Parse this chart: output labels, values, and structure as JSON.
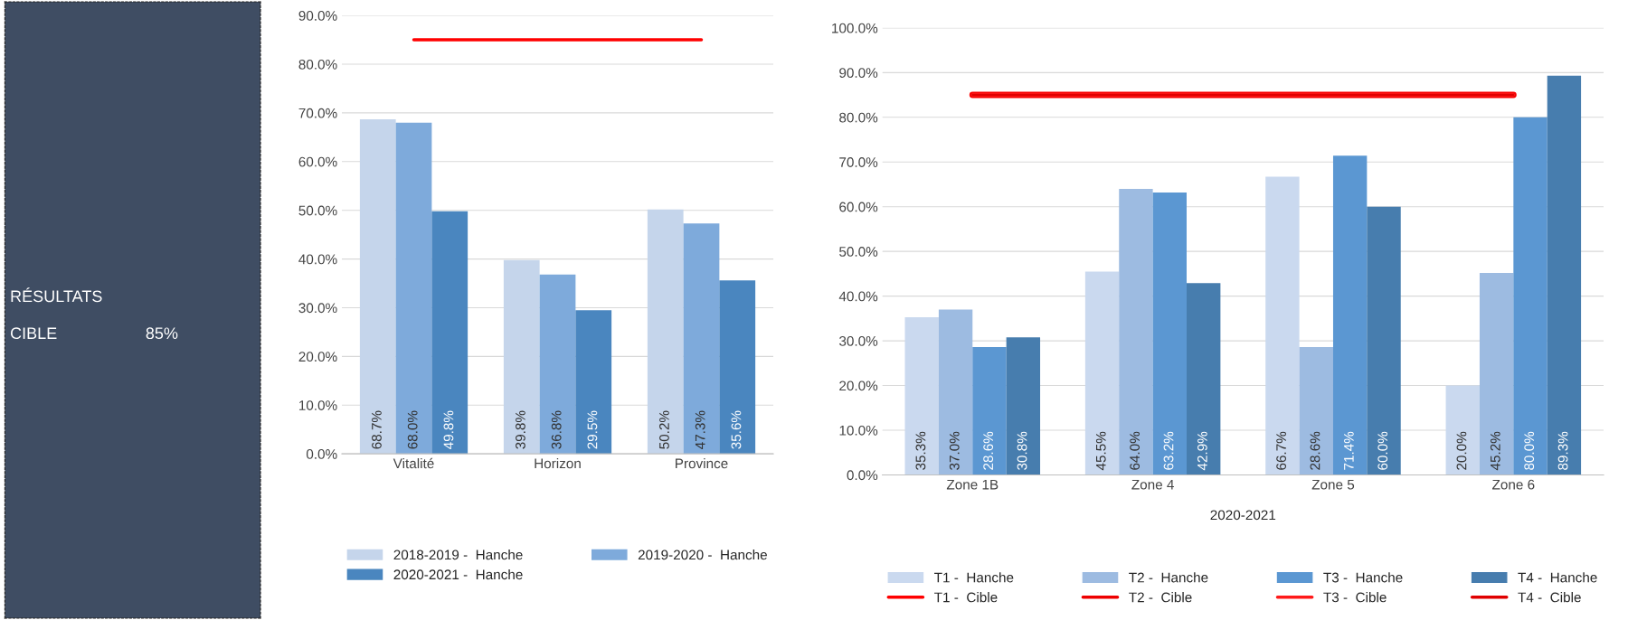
{
  "chart_data": [
    {
      "type": "other",
      "color": "#3f4d63",
      "annotations": [
        "RÉSULTATS",
        "CIBLE",
        "85%"
      ]
    },
    {
      "type": "bar",
      "categories": [
        "Vitalité",
        "Horizon",
        "Province"
      ],
      "ylim": [
        0,
        90
      ],
      "yticks": [
        {
          "value": 0,
          "label": "0.0%"
        },
        {
          "value": 10,
          "label": "10.0%"
        },
        {
          "value": 20,
          "label": "20.0%"
        },
        {
          "value": 30,
          "label": "30.0%"
        },
        {
          "value": 40,
          "label": "40.0%"
        },
        {
          "value": 50,
          "label": "50.0%"
        },
        {
          "value": 60,
          "label": "60.0%"
        },
        {
          "value": 70,
          "label": "70.0%"
        },
        {
          "value": 80,
          "label": "80.0%"
        },
        {
          "value": 90,
          "label": "90.0%"
        }
      ],
      "grid": "y",
      "legend": "bottom",
      "series": [
        {
          "name": "2018-2019 -  Hanche",
          "color": "#c5d5eb",
          "values": [
            68.7,
            39.8,
            50.2
          ],
          "value_labels": [
            "68.7%",
            "39.8%",
            "50.2%"
          ]
        },
        {
          "name": "2019-2020 -  Hanche",
          "color": "#7eaadb",
          "values": [
            68.0,
            36.8,
            47.3
          ],
          "value_labels": [
            "68.0%",
            "36.8%",
            "47.3%"
          ]
        },
        {
          "name": "2020-2021 -  Hanche",
          "color": "#4a86bf",
          "values": [
            49.8,
            29.5,
            35.6
          ],
          "value_labels": [
            "49.8%",
            "29.5%",
            "35.6%"
          ]
        },
        {
          "type": "line",
          "color": "#ff0000",
          "values": [
            85,
            85,
            85
          ]
        }
      ]
    },
    {
      "type": "bar",
      "categories": [
        "Zone 1B",
        "Zone 4",
        "Zone 5",
        "Zone 6"
      ],
      "xlabel": "2020-2021",
      "ylim": [
        0,
        100
      ],
      "yticks": [
        {
          "value": 0,
          "label": "0.0%"
        },
        {
          "value": 10,
          "label": "10.0%"
        },
        {
          "value": 20,
          "label": "20.0%"
        },
        {
          "value": 30,
          "label": "30.0%"
        },
        {
          "value": 40,
          "label": "40.0%"
        },
        {
          "value": 50,
          "label": "50.0%"
        },
        {
          "value": 60,
          "label": "60.0%"
        },
        {
          "value": 70,
          "label": "70.0%"
        },
        {
          "value": 80,
          "label": "80.0%"
        },
        {
          "value": 90,
          "label": "90.0%"
        },
        {
          "value": 100,
          "label": "100.0%"
        }
      ],
      "grid": "y",
      "legend": "bottom",
      "series": [
        {
          "name": "T1 -  Hanche",
          "color": "#cad9ef",
          "values": [
            35.3,
            45.5,
            66.7,
            20.0
          ],
          "value_labels": [
            "35.3%",
            "45.5%",
            "66.7%",
            "20.0%"
          ]
        },
        {
          "name": "T2 -  Hanche",
          "color": "#9dbbe1",
          "values": [
            37.0,
            64.0,
            28.6,
            45.2
          ],
          "value_labels": [
            "37.0%",
            "64.0%",
            "28.6%",
            "45.2%"
          ]
        },
        {
          "name": "T3 -  Hanche",
          "color": "#5b97d2",
          "values": [
            28.6,
            63.2,
            71.4,
            80.0
          ],
          "value_labels": [
            "28.6%",
            "63.2%",
            "71.4%",
            "80.0%"
          ]
        },
        {
          "name": "T4 -  Hanche",
          "color": "#477dae",
          "values": [
            30.8,
            42.9,
            60.0,
            89.3
          ],
          "value_labels": [
            "30.8%",
            "42.9%",
            "60.0%",
            "89.3%"
          ]
        },
        {
          "type": "line",
          "name": "T1 -  Cible",
          "color": "#ff0000",
          "values": [
            85,
            85,
            85,
            85
          ]
        },
        {
          "type": "line",
          "name": "T2 -  Cible",
          "color": "#ee0000",
          "values": [
            85,
            85,
            85,
            85
          ]
        },
        {
          "type": "line",
          "name": "T3 -  Cible",
          "color": "#ff1a1a",
          "values": [
            85,
            85,
            85,
            85
          ]
        },
        {
          "type": "line",
          "name": "T4 -  Cible",
          "color": "#e00000",
          "values": [
            85,
            85,
            85,
            85
          ]
        }
      ]
    }
  ]
}
